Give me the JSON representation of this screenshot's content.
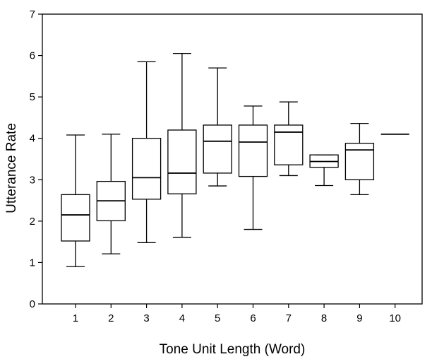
{
  "chart_data": {
    "type": "boxplot",
    "title": "",
    "xlabel": "Tone Unit Length (Word)",
    "ylabel": "Utterance Rate",
    "ylim": [
      0,
      7
    ],
    "yticks": [
      "0",
      "1",
      "2",
      "3",
      "4",
      "5",
      "6",
      "7"
    ],
    "categories": [
      "1",
      "2",
      "3",
      "4",
      "5",
      "6",
      "7",
      "8",
      "9",
      "10"
    ],
    "grid": false,
    "legend": "none",
    "boxes": [
      {
        "category": "1",
        "min": 0.9,
        "q1": 1.52,
        "median": 2.15,
        "q3": 2.64,
        "max": 4.08
      },
      {
        "category": "2",
        "min": 1.21,
        "q1": 2.01,
        "median": 2.49,
        "q3": 2.96,
        "max": 4.1
      },
      {
        "category": "3",
        "min": 1.48,
        "q1": 2.53,
        "median": 3.05,
        "q3": 4.0,
        "max": 5.85
      },
      {
        "category": "4",
        "min": 1.61,
        "q1": 2.66,
        "median": 3.16,
        "q3": 4.2,
        "max": 6.05
      },
      {
        "category": "5",
        "min": 2.85,
        "q1": 3.16,
        "median": 3.93,
        "q3": 4.32,
        "max": 5.7
      },
      {
        "category": "6",
        "min": 1.8,
        "q1": 3.08,
        "median": 3.91,
        "q3": 4.32,
        "max": 4.78
      },
      {
        "category": "7",
        "min": 3.1,
        "q1": 3.36,
        "median": 4.15,
        "q3": 4.32,
        "max": 4.88
      },
      {
        "category": "8",
        "min": 2.86,
        "q1": 3.3,
        "median": 3.44,
        "q3": 3.6,
        "max": 3.6
      },
      {
        "category": "9",
        "min": 2.64,
        "q1": 3.0,
        "median": 3.72,
        "q3": 3.88,
        "max": 4.36
      },
      {
        "category": "10",
        "min": 4.1,
        "q1": 4.1,
        "median": 4.1,
        "q3": 4.1,
        "max": 4.1
      }
    ]
  },
  "colors": {
    "line": "#000000",
    "background": "#ffffff"
  }
}
